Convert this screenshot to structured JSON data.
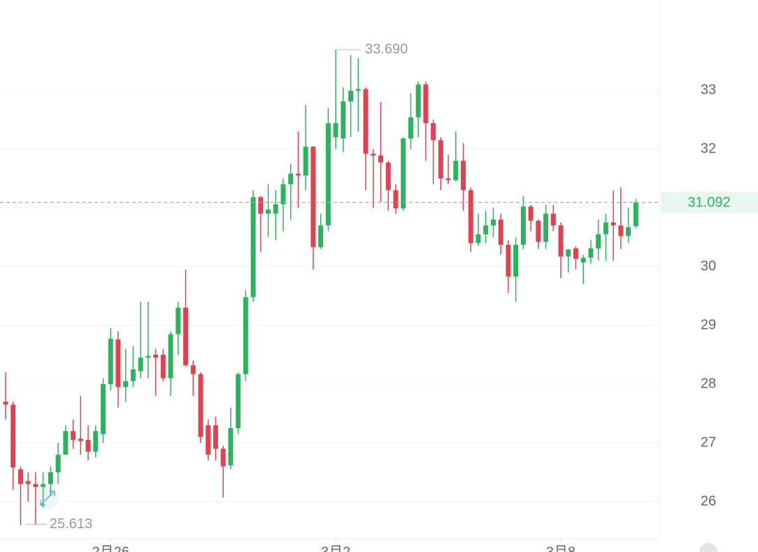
{
  "chart_data": {
    "type": "candlestick",
    "up_color": "#2db35d",
    "down_color": "#e0424f",
    "ylim": [
      25.369,
      34.536
    ],
    "yticks": [
      26,
      27,
      28,
      29,
      30,
      31,
      32,
      33
    ],
    "grid": true,
    "xticks": [
      {
        "value": 14,
        "label": "2月26"
      },
      {
        "value": 44,
        "label": "3月2"
      },
      {
        "value": 74,
        "label": "3月8"
      }
    ],
    "last_price": 31.092,
    "max_label": {
      "value": 33.69,
      "label": "33.690"
    },
    "min_label": {
      "value": 25.613,
      "label": "25.613"
    },
    "ohlc": [
      [
        27.7,
        28.2,
        27.4,
        27.65
      ],
      [
        27.65,
        27.7,
        26.2,
        26.58
      ],
      [
        26.55,
        26.6,
        25.6,
        26.3
      ],
      [
        26.35,
        26.5,
        26.0,
        26.3
      ],
      [
        26.3,
        26.5,
        25.613,
        26.25
      ],
      [
        26.25,
        26.5,
        25.9,
        26.3
      ],
      [
        26.3,
        26.6,
        26.1,
        26.5
      ],
      [
        26.5,
        27.0,
        26.3,
        26.8
      ],
      [
        26.8,
        27.3,
        26.8,
        27.2
      ],
      [
        27.2,
        27.4,
        26.9,
        27.05
      ],
      [
        27.07,
        27.8,
        26.8,
        27.03
      ],
      [
        27.05,
        27.3,
        26.7,
        26.85
      ],
      [
        26.85,
        27.3,
        26.75,
        27.2
      ],
      [
        27.15,
        28.1,
        27.0,
        28.0
      ],
      [
        28.0,
        28.95,
        27.9,
        28.77
      ],
      [
        28.76,
        28.9,
        27.6,
        27.95
      ],
      [
        27.95,
        28.6,
        27.7,
        28.05
      ],
      [
        28.05,
        28.65,
        27.95,
        28.25
      ],
      [
        28.22,
        29.4,
        28.1,
        28.45
      ],
      [
        28.45,
        29.4,
        28.1,
        28.48
      ],
      [
        28.5,
        28.6,
        27.8,
        28.45
      ],
      [
        28.5,
        28.6,
        28.05,
        28.1
      ],
      [
        28.1,
        28.9,
        27.8,
        28.85
      ],
      [
        28.85,
        29.4,
        28.5,
        29.3
      ],
      [
        29.3,
        29.95,
        28.3,
        28.32
      ],
      [
        28.32,
        28.4,
        27.8,
        28.17
      ],
      [
        28.17,
        28.2,
        27.0,
        27.1
      ],
      [
        27.3,
        27.4,
        26.7,
        26.8
      ],
      [
        27.3,
        27.45,
        26.7,
        26.9
      ],
      [
        26.9,
        26.95,
        26.07,
        26.6
      ],
      [
        26.62,
        27.6,
        26.55,
        27.25
      ],
      [
        27.25,
        28.2,
        27.15,
        28.17
      ],
      [
        28.17,
        29.6,
        28.05,
        29.48
      ],
      [
        29.48,
        31.3,
        29.4,
        31.18
      ],
      [
        31.18,
        31.2,
        30.25,
        30.9
      ],
      [
        30.9,
        31.4,
        30.5,
        30.97
      ],
      [
        30.9,
        31.3,
        30.45,
        31.06
      ],
      [
        31.06,
        31.5,
        30.6,
        31.4
      ],
      [
        31.4,
        31.75,
        30.8,
        31.58
      ],
      [
        31.58,
        32.3,
        31.0,
        31.55
      ],
      [
        31.55,
        32.75,
        31.3,
        32.04
      ],
      [
        32.04,
        32.05,
        29.95,
        30.33
      ],
      [
        30.33,
        30.9,
        30.3,
        30.7
      ],
      [
        30.7,
        32.7,
        30.6,
        32.44
      ],
      [
        32.2,
        33.69,
        32.0,
        32.44
      ],
      [
        32.18,
        33.05,
        31.95,
        32.81
      ],
      [
        32.81,
        33.6,
        32.2,
        32.99
      ],
      [
        32.99,
        33.55,
        32.3,
        33.02
      ],
      [
        33.02,
        33.05,
        31.3,
        31.92
      ],
      [
        31.92,
        32.0,
        31.0,
        31.89
      ],
      [
        31.89,
        32.8,
        31.1,
        31.77
      ],
      [
        31.77,
        31.8,
        30.95,
        31.3
      ],
      [
        31.3,
        31.4,
        30.9,
        30.99
      ],
      [
        30.99,
        32.2,
        30.95,
        32.18
      ],
      [
        32.18,
        32.95,
        32.0,
        32.54
      ],
      [
        32.54,
        33.15,
        32.2,
        33.1
      ],
      [
        33.1,
        33.15,
        31.8,
        32.44
      ],
      [
        32.44,
        32.5,
        31.4,
        32.15
      ],
      [
        32.15,
        32.2,
        31.3,
        31.5
      ],
      [
        31.5,
        31.9,
        31.4,
        31.47
      ],
      [
        31.47,
        32.3,
        31.45,
        31.8
      ],
      [
        31.8,
        32.1,
        30.95,
        31.3
      ],
      [
        31.3,
        31.35,
        30.25,
        30.4
      ],
      [
        30.4,
        30.9,
        30.35,
        30.55
      ],
      [
        30.55,
        30.95,
        30.4,
        30.7
      ],
      [
        30.7,
        31.0,
        30.5,
        30.8
      ],
      [
        30.8,
        30.9,
        30.2,
        30.37
      ],
      [
        30.37,
        30.45,
        29.55,
        29.83
      ],
      [
        29.83,
        30.5,
        29.4,
        30.37
      ],
      [
        30.37,
        31.2,
        30.3,
        31.02
      ],
      [
        31.02,
        31.05,
        30.6,
        30.78
      ],
      [
        30.78,
        30.8,
        30.3,
        30.42
      ],
      [
        30.42,
        31.05,
        30.3,
        30.9
      ],
      [
        30.9,
        31.05,
        30.6,
        30.7
      ],
      [
        30.7,
        30.75,
        29.8,
        30.17
      ],
      [
        30.17,
        30.3,
        29.9,
        30.29
      ],
      [
        30.31,
        30.35,
        29.95,
        30.13
      ],
      [
        30.07,
        30.2,
        29.7,
        30.15
      ],
      [
        30.15,
        30.45,
        30.05,
        30.31
      ],
      [
        30.31,
        30.8,
        30.1,
        30.55
      ],
      [
        30.55,
        30.9,
        30.1,
        30.75
      ],
      [
        30.75,
        31.3,
        30.1,
        30.7
      ],
      [
        30.7,
        31.35,
        30.3,
        30.52
      ],
      [
        30.52,
        31.0,
        30.4,
        30.67
      ],
      [
        30.69,
        31.15,
        30.65,
        31.092
      ]
    ]
  }
}
